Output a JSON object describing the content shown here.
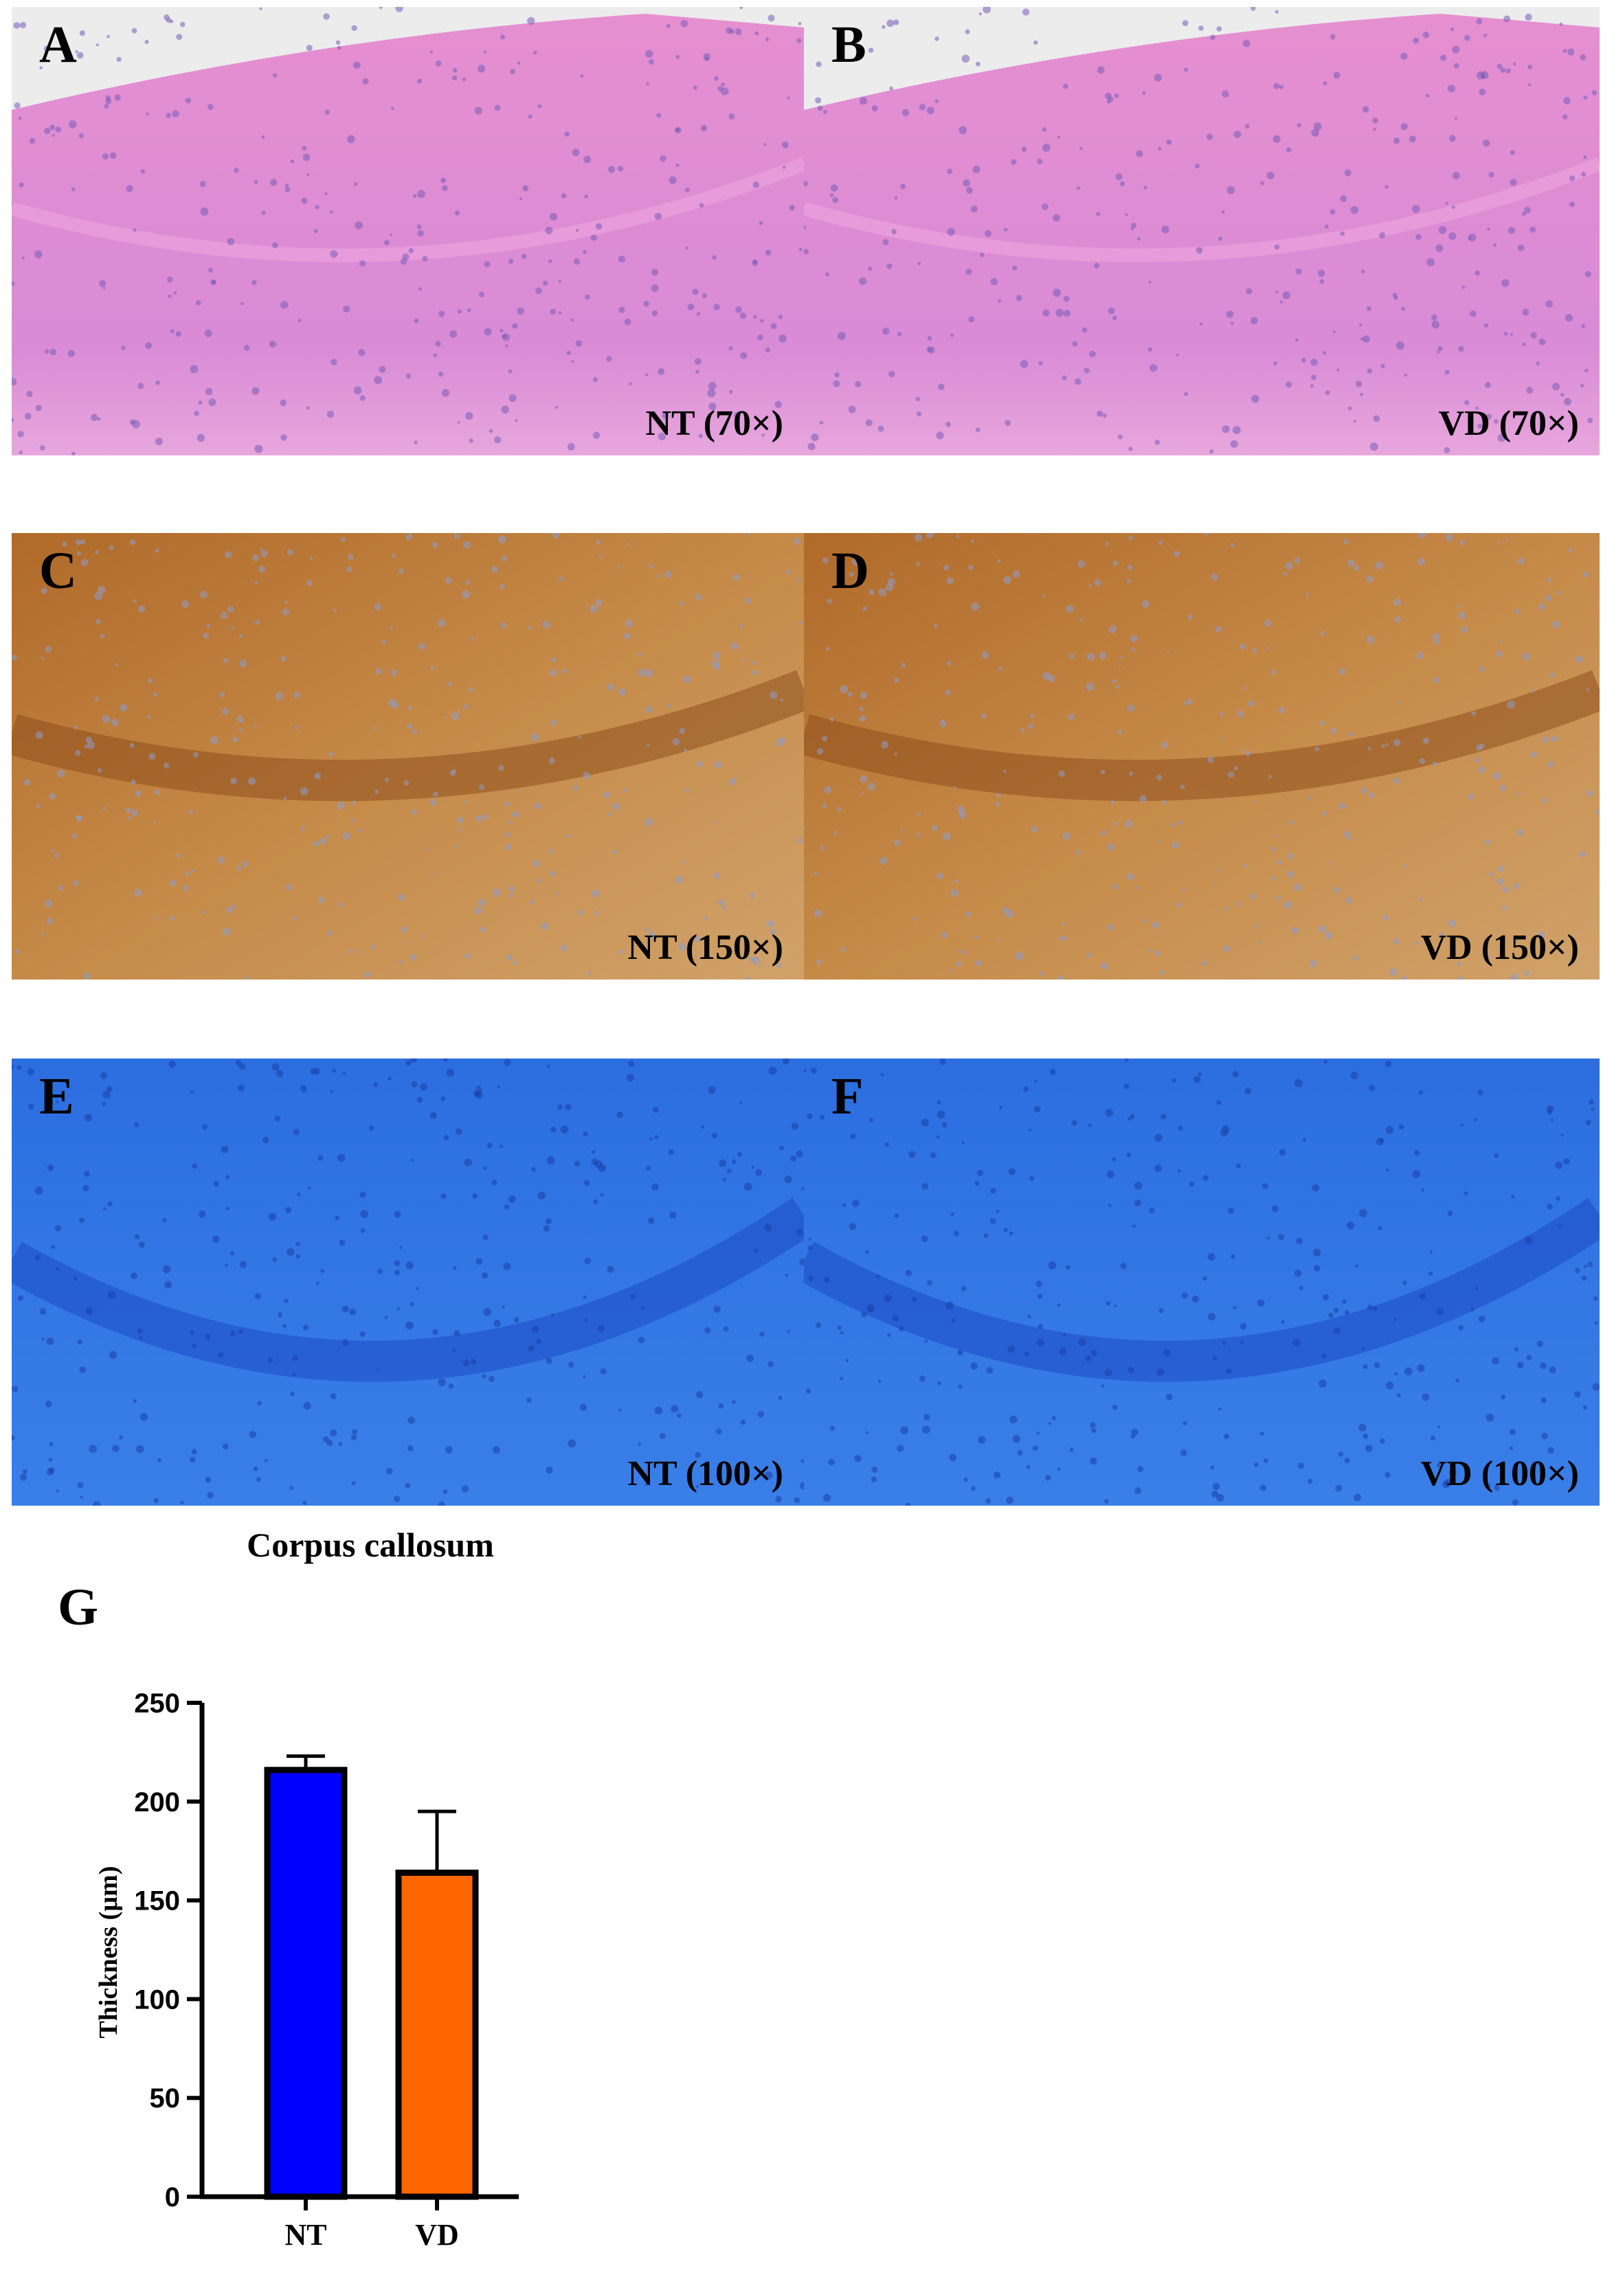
{
  "panels": [
    {
      "letter": "A",
      "caption": "NT (70×)"
    },
    {
      "letter": "B",
      "caption": "VD (70×)"
    },
    {
      "letter": "C",
      "caption": "NT (150×)"
    },
    {
      "letter": "D",
      "caption": "VD (150×)"
    },
    {
      "letter": "E",
      "caption": "NT (100×)"
    },
    {
      "letter": "F",
      "caption": "VD (100×)"
    }
  ],
  "chart_letter": "G",
  "chart_data": {
    "type": "bar",
    "title": "Corpus callosum",
    "y_label": "Thickness (µm)",
    "categories": [
      "NT",
      "VD"
    ],
    "values": [
      216,
      164
    ],
    "errors": [
      7,
      31
    ],
    "colors": [
      "#0000ff",
      "#ff6600"
    ],
    "ylim": [
      0,
      250
    ],
    "yticks": [
      0,
      50,
      100,
      150,
      200,
      250
    ]
  }
}
